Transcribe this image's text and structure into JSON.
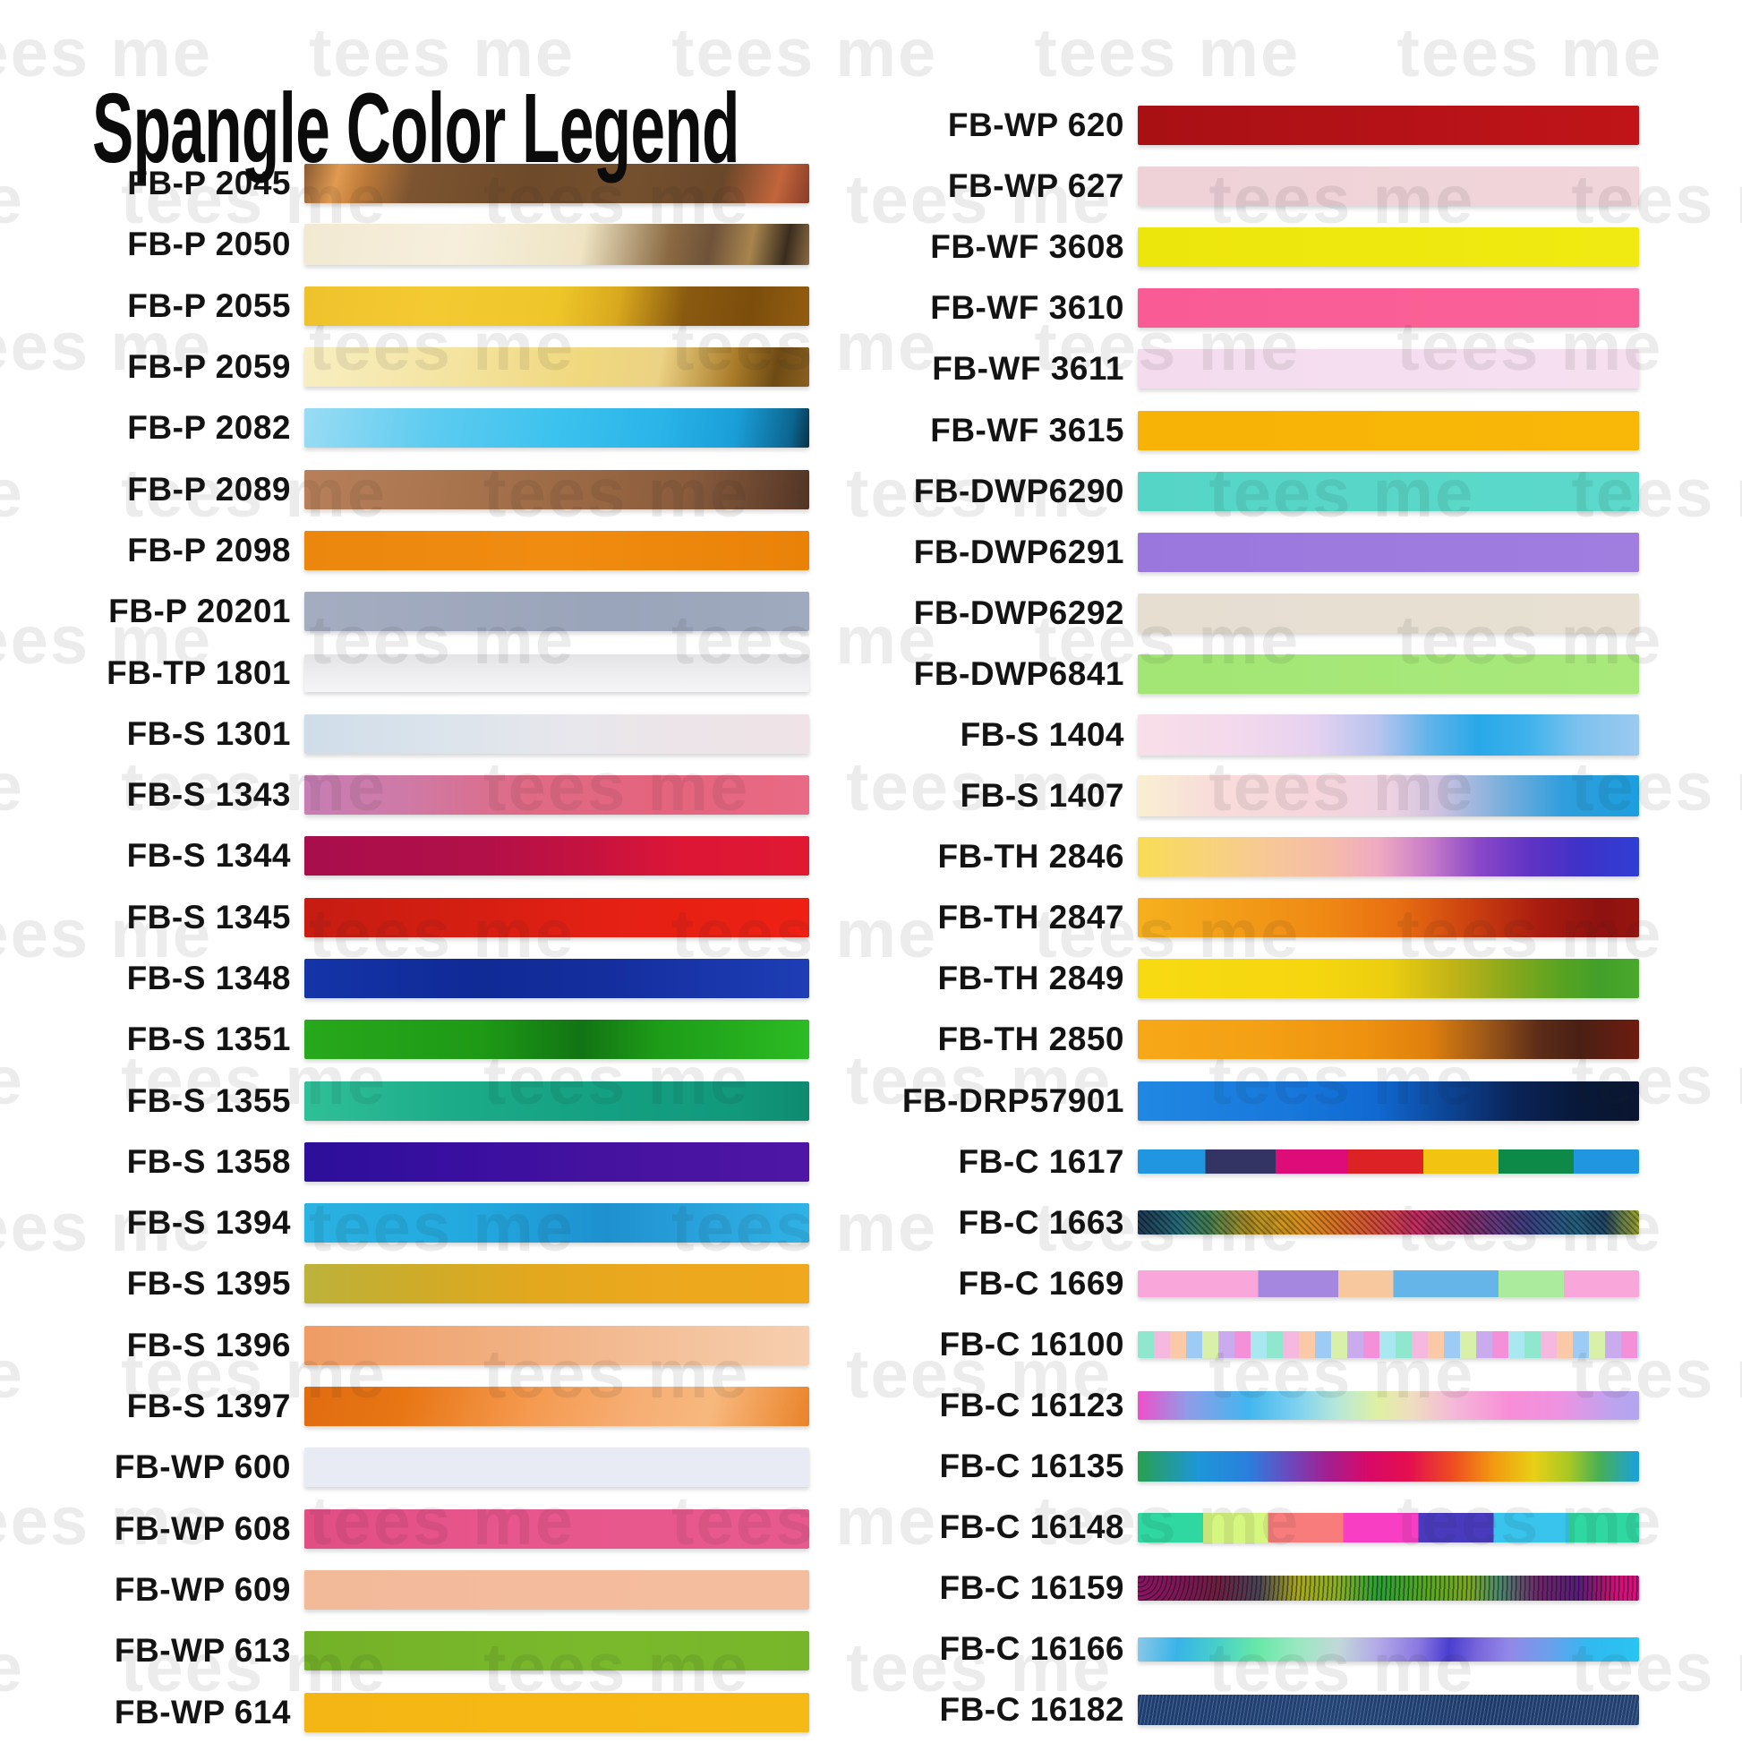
{
  "title": "Spangle Color Legend",
  "watermark": {
    "text": "tees me"
  },
  "chart_data": {
    "type": "table",
    "title": "Spangle Color Legend",
    "columns": [
      "code",
      "swatch_css",
      "height_px"
    ],
    "left_rows": [
      {
        "code": "FB-P 2045",
        "h": 44,
        "css": "linear-gradient(105deg, #8a5a30 0%, #e09a52 7%, #c07c3a 12%, #7c5430 22%, #6e4a2a 45%, #74502e 65%, #6a472a 82%, #c2653c 93%, #8a3c28 100%)"
      },
      {
        "code": "FB-P 2050",
        "h": 46,
        "css": "linear-gradient(100deg, #f2e9d2 0%, #f6efdc 30%, #efe4c4 55%, #8a6a42 72%, #6e523a 80%, #a8854e 88%, #3a2c1e 95%, #8a6a42 100%)"
      },
      {
        "code": "FB-P 2055",
        "h": 44,
        "css": "linear-gradient(100deg, #eec22c 0%, #f4ca32 25%, #eec62a 50%, #d8a81e 62%, #8a5a10 75%, #7c4e0c 88%, #935d10 100%)"
      },
      {
        "code": "FB-P 2059",
        "h": 44,
        "css": "linear-gradient(100deg, #f8eec2 0%, #f4e4a0 30%, #f0d87e 55%, #ecd284 70%, #a87a28 85%, #6e4a14 93%, #8a6020 100%)"
      },
      {
        "code": "FB-P 2082",
        "h": 44,
        "css": "linear-gradient(100deg, #9adcf4 0%, #5eccf0 25%, #3cc2ee 50%, #2ab4e8 70%, #1a9ed8 85%, #0c648e 96%, #083248 100%)"
      },
      {
        "code": "FB-P 2089",
        "h": 44,
        "css": "linear-gradient(100deg, #b8805a 0%, #a8744e 30%, #9a6844 55%, #8a5c3c 75%, #6a4630 90%, #523424 100%)"
      },
      {
        "code": "FB-P 2098",
        "h": 44,
        "css": "linear-gradient(90deg, #ec870e 0%, #f08c10 50%, #ea8208 100%)"
      },
      {
        "code": "FB-P 20201",
        "h": 44,
        "css": "linear-gradient(90deg, #a4adc0 0%, #9aa4ba 60%, #a0aabe 100%)"
      },
      {
        "code": "FB-TP 1801",
        "h": 42,
        "css": "linear-gradient(180deg, #e4e4e7 0%, #ececef 40%, #f5f5f7 100%)"
      },
      {
        "code": "FB-S 1301",
        "h": 44,
        "css": "linear-gradient(90deg, #cfdde9 0%, #dde4ec 30%, #e8e7ec 55%, #ece4e8 75%, #efe3e7 100%)"
      },
      {
        "code": "FB-S 1343",
        "h": 44,
        "css": "linear-gradient(90deg, #c77eb4 0%, #cf7aa6 20%, #e06a84 45%, #e4647e 70%, #e96a84 100%)"
      },
      {
        "code": "FB-S 1344",
        "h": 44,
        "css": "linear-gradient(90deg, #a80e4c 0%, #b21048 35%, #c41240 55%, #dd1636 75%, #e01832 100%)"
      },
      {
        "code": "FB-S 1345",
        "h": 44,
        "css": "linear-gradient(90deg, #c61c12 0%, #d41e12 30%, #e42014 60%, #ee2014 100%)"
      },
      {
        "code": "FB-S 1348",
        "h": 44,
        "css": "linear-gradient(90deg, #1434a8 0%, #102a96 35%, #142e9e 60%, #1e3eb6 100%)"
      },
      {
        "code": "FB-S 1351",
        "h": 44,
        "css": "linear-gradient(90deg, #28a81c 0%, #1e9a16 35%, #127414 55%, #1d9c18 70%, #2cbc24 100%)"
      },
      {
        "code": "FB-S 1355",
        "h": 44,
        "css": "linear-gradient(90deg, #30c098 0%, #1cab88 30%, #14a082 60%, #12997c 85%, #0e8a70 100%)"
      },
      {
        "code": "FB-S 1358",
        "h": 44,
        "css": "linear-gradient(90deg, #2c0f9a 0%, #390fa0 30%, #45129f 60%, #4f16a5 100%)"
      },
      {
        "code": "FB-S 1394",
        "h": 44,
        "css": "linear-gradient(90deg, #2ab2e2 0%, #22a8de 35%, #1e90cf 60%, #2aa4dc 80%, #2fb2e6 100%)"
      },
      {
        "code": "FB-S 1395",
        "h": 44,
        "css": "linear-gradient(90deg, #bcb23c 0%, #ccac2a 20%, #e2a81e 45%, #eca81e 70%, #f0a81e 100%)"
      },
      {
        "code": "FB-S 1396",
        "h": 44,
        "css": "linear-gradient(90deg, #ef9c64 0%, #f0a876 25%, #f2b488 50%, #f4c29c 75%, #f6cfae 100%)"
      },
      {
        "code": "FB-S 1397",
        "h": 44,
        "css": "linear-gradient(105deg, #e06c10 0%, #e87614 20%, #f59a50 45%, #f6ae74 65%, #f7b87e 80%, #f0984a 92%, #e8832a 100%)"
      },
      {
        "code": "FB-WP 600",
        "h": 44,
        "css": "linear-gradient(90deg, #e8eaf4 0%, #e9ebf4 100%)"
      },
      {
        "code": "FB-WP 608",
        "h": 44,
        "css": "linear-gradient(90deg, #e14e84 0%, #e7568c 40%, #e85a8e 100%)"
      },
      {
        "code": "FB-WP 609",
        "h": 44,
        "css": "linear-gradient(90deg, #f3ba9a 0%, #f4be9e 100%)"
      },
      {
        "code": "FB-WP 613",
        "h": 44,
        "css": "linear-gradient(90deg, #74b128 0%, #7ab92c 60%, #77b52a 100%)"
      },
      {
        "code": "FB-WP 614",
        "h": 44,
        "css": "linear-gradient(90deg, #f4b614 0%, #f6ba16 100%)"
      }
    ],
    "right_rows": [
      {
        "code": "FB-WP 620",
        "h": 44,
        "css": "linear-gradient(90deg, #a81014 0%, #b31217 45%, #c01418 100%)"
      },
      {
        "code": "FB-WP 627",
        "h": 44,
        "css": "linear-gradient(90deg, #eed2d7 0%, #f0d5da 100%)"
      },
      {
        "code": "FB-WF 3608",
        "h": 44,
        "css": "linear-gradient(90deg, #ede60c 0%, #f0ea12 100%)"
      },
      {
        "code": "FB-WF 3610",
        "h": 44,
        "css": "linear-gradient(90deg, #f95c95 0%, #fa6198 100%)"
      },
      {
        "code": "FB-WF 3611",
        "h": 44,
        "css": "linear-gradient(90deg, #f4dcee 0%, #f6e0f0 100%)"
      },
      {
        "code": "FB-WF 3615",
        "h": 44,
        "css": "linear-gradient(90deg, #f7b306 0%, #f9b808 100%)"
      },
      {
        "code": "FB-DWP6290",
        "h": 44,
        "css": "linear-gradient(90deg, #55d5c6 0%, #5cd9ca 100%)"
      },
      {
        "code": "FB-DWP6291",
        "h": 44,
        "css": "linear-gradient(90deg, #9a77dd 0%, #a07ee0 100%)"
      },
      {
        "code": "FB-DWP6292",
        "h": 44,
        "css": "linear-gradient(90deg, #e5ded1 0%, #e7e0d3 100%)"
      },
      {
        "code": "FB-DWP6841",
        "h": 44,
        "css": "linear-gradient(90deg, #a3e675 0%, #a9e97c 100%)"
      },
      {
        "code": "FB-S 1404",
        "h": 46,
        "css": "linear-gradient(90deg, #f8dfe8 0%, #f3d9ec 20%, #e6d2f0 35%, #b8c4ee 48%, #62b4ea 58%, #29a8e8 68%, #3fb2ec 78%, #7cc2ee 88%, #9ccaf0 100%)"
      },
      {
        "code": "FB-S 1407",
        "h": 46,
        "css": "linear-gradient(90deg, #f9efd2 0%, #f8dcda 15%, #f6d6dc 35%, #eed2e2 50%, #cfc2e0 60%, #7fb0dc 72%, #2f9edc 85%, #1c9ede 100%)"
      },
      {
        "code": "FB-TH 2846",
        "h": 44,
        "css": "linear-gradient(90deg, #f8dc55 0%, #f8d475 12%, #f7c995 25%, #f5bca8 38%, #efaac2 48%, #c87cc8 58%, #8a48c8 68%, #6034c4 78%, #3f32c8 88%, #2f3ed4 100%)"
      },
      {
        "code": "FB-TH 2847",
        "h": 44,
        "css": "linear-gradient(90deg, #f6b01e 0%, #f29c18 20%, #ef8814 38%, #e86e12 52%, #cc4210 66%, #aa1c10 80%, #8e1210 92%, #961410 100%)"
      },
      {
        "code": "FB-TH 2849",
        "h": 44,
        "css": "linear-gradient(90deg, #f8da12 0%, #f5d60f 35%, #ecce10 50%, #c4b517 62%, #8aa81c 74%, #5aa322 84%, #42a028 92%, #4aa82e 100%)"
      },
      {
        "code": "FB-TH 2850",
        "h": 44,
        "css": "linear-gradient(90deg, #f7a818 0%, #f4a014 25%, #ee9210 45%, #e0800e 58%, #9a5618 70%, #5c2c18 80%, #4a2014 88%, #6e1c10 100%)"
      },
      {
        "code": "FB-DRP57901",
        "h": 44,
        "css": "linear-gradient(90deg, #2088e2 0%, #1878dc 30%, #1068d0 48%, #0c4494 62%, #0a2458 75%, #081838 88%, #0a1630 100%)"
      },
      {
        "code": "FB-C 1617",
        "h": 27,
        "css": "linear-gradient(90deg, #2196e0 0%, #2196e0 13.5%, #343464 13.5%, #343464 27.5%, #dd0c78 27.5%, #dd0c78 42%, #dd2226 42%, #dd2226 57%, #f2c411 57%, #f2c411 72%, #0e8a48 72%, #0e8a48 87%, #2196e0 87%, #2196e0 100%)"
      },
      {
        "code": "FB-C 1663",
        "h": 27,
        "css": "repeating-linear-gradient(45deg, rgba(0,0,0,0.25) 0px 2px, rgba(255,255,255,0.06) 2px 5px), linear-gradient(90deg, #142c48 0%, #1a5e6e 8%, #3a7a4a 14%, #a8881c 22%, #d29214 30%, #d2701a 38%, #cc4a2a 46%, #c02458 55%, #92205e 63%, #5c2c74 71%, #2c3878 79%, #1a5878 87%, #163c5e 93%, #9aa226 100%)"
      },
      {
        "code": "FB-C 1669",
        "h": 30,
        "css": "linear-gradient(90deg, #f9a6da 0%, #f9a6da 24%, #a687e0 24%, #a687e0 40%, #f7c79e 40%, #f7c79e 51%, #66b5e8 51%, #66b5e8 72%, #abeb9e 72%, #abeb9e 85%, #f9a6da 85%, #f9a6da 100%)"
      },
      {
        "code": "FB-C 16100",
        "h": 30,
        "css": "repeating-linear-gradient(90deg, #8fe8cd 0px 18px, #f7b8e0 18px 36px, #fbc8a8 36px 54px, #9ccbf5 54px 72px, #d8f0a8 72px 90px, #cbabf0 90px 108px, #f490d8 108px 126px, #a8e8f0 126px 144px)"
      },
      {
        "code": "FB-C 16123",
        "h": 32,
        "css": "linear-gradient(90deg, #f04eca 0%, #8f9ce8 10%, #42b6ee 22%, #7fd2f0 32%, #b8e8d8 40%, #e0f0a2 48%, #efdcc0 55%, #f4b8d8 63%, #f88ed8 74%, #ef92e0 84%, #c0a2ee 94%, #b2a6ee 100%)"
      },
      {
        "code": "FB-C 16135",
        "h": 34,
        "css": "linear-gradient(90deg, #28a050 0%, #1e96d8 12%, #2a80dc 22%, #6a4ac0 30%, #a31f90 38%, #d80a68 46%, #e40e50 54%, #ee4e20 63%, #f29a10 71%, #e8d016 79%, #a8c824 86%, #48b054 92%, #18a0e0 100%)"
      },
      {
        "code": "FB-C 16148",
        "h": 33,
        "css": "linear-gradient(90deg, #2fd8a0 0%, #2fd8a0 13%, #d6f77f 13%, #d6f77f 26%, #f87c7c 26%, #f87c7c 41%, #f83fc4 41%, #f83fc4 56%, #4a3bbe 56%, #4a3bbe 71%, #38c4ec 71%, #38c4ec 86%, #2fd8a0 86%, #2fd8a0 100%)"
      },
      {
        "code": "FB-C 16159",
        "h": 28,
        "css": "repeating-radial-gradient(circle at 2px 2px, rgba(15,15,35,0.55) 0px 1.5px, rgba(255,255,255,0.0) 1.5px 5px), linear-gradient(90deg, #8e1460 0%, #7c1650 10%, #6e1e3e 16%, #4a4252 24%, #a8a818 32%, #8ab020 40%, #28a030 48%, #58a81c 58%, #7aa81e 66%, #4a8a68 72%, #6e2468 80%, #581c78 88%, #a8156a 93%, #d80e78 96%, #d81078 100%)"
      },
      {
        "code": "FB-C 16166",
        "h": 27,
        "css": "linear-gradient(95deg, #8ac8e8 0%, #38b4e8 8%, #48d0c8 16%, #68e8a8 24%, #9ae8c0 32%, #c2d8d8 40%, #b2a8e8 48%, #8a78e0 56%, #4a3ed0 62%, #7a68dc 68%, #9288e8 74%, #6aa0ec 82%, #30baf0 90%, #2ac4f2 100%)"
      },
      {
        "code": "FB-C 16182",
        "h": 34,
        "css": "repeating-linear-gradient(100deg, rgba(150,180,230,0.35) 0px 1px, rgba(0,0,0,0) 1px 4px), linear-gradient(90deg, #1e3c6c 0%, #224272 40%, #1e3a68 70%, #24406e 100%)"
      }
    ]
  },
  "layout_hints": {
    "watermark_rows_y": [
      62,
      226,
      390,
      554,
      718,
      882,
      1046,
      1210,
      1374,
      1538,
      1702,
      1866
    ],
    "watermark_repeats_per_row": 6
  }
}
